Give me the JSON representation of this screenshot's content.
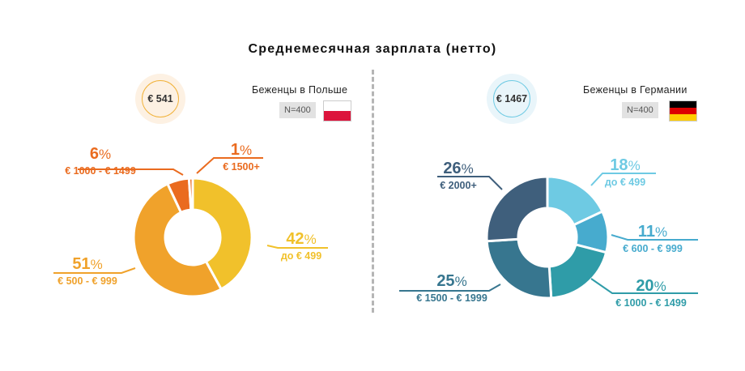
{
  "title": "Среднемесячная зарплата (нетто)",
  "panels": {
    "poland": {
      "average": "€ 541",
      "group": "Беженцы в Польше",
      "n": "N=400",
      "flag_colors": [
        "#ffffff",
        "#dc143c"
      ]
    },
    "germany": {
      "average": "€ 1467",
      "group": "Беженцы в Германии",
      "n": "N=400",
      "flag_colors": [
        "#000000",
        "#dd0000",
        "#ffce00"
      ]
    }
  },
  "chart_data": [
    {
      "type": "pie",
      "title": "Беженцы в Польше",
      "categories": [
        "до € 499",
        "€ 500 - € 999",
        "€ 1000 - € 1499",
        "€ 1500+"
      ],
      "values": [
        42,
        51,
        6,
        1
      ],
      "value_suffix": "%",
      "colors": [
        "#f1c12b",
        "#f0a22b",
        "#ea6b1f",
        "#ea6b1f"
      ]
    },
    {
      "type": "pie",
      "title": "Беженцы в Германии",
      "categories": [
        "до € 499",
        "€ 600 - € 999",
        "€ 1000 - € 1499",
        "€ 1500 - € 1999",
        "€ 2000+"
      ],
      "values": [
        18,
        11,
        20,
        25,
        26
      ],
      "value_suffix": "%",
      "colors": [
        "#6ecae3",
        "#47abce",
        "#2f9ca8",
        "#37768f",
        "#3f5f7c"
      ]
    }
  ]
}
